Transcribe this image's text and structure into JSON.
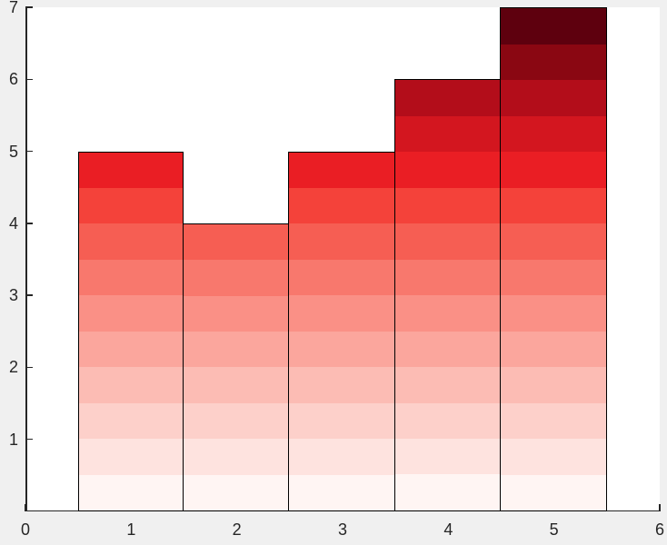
{
  "chart_data": {
    "type": "bar",
    "title": "",
    "xlabel": "",
    "ylabel": "",
    "x": [
      1,
      2,
      3,
      4,
      5
    ],
    "values": [
      5,
      4,
      5,
      6,
      7
    ],
    "bar_width": 1,
    "xlim": [
      0,
      6
    ],
    "ylim": [
      0,
      7
    ],
    "x_ticks": [
      0,
      1,
      2,
      3,
      4,
      5,
      6
    ],
    "y_ticks": [
      1,
      2,
      3,
      4,
      5,
      6,
      7
    ],
    "grid": "off",
    "legend": "none",
    "band_height": 0.5,
    "band_colors": [
      "#fff5f3",
      "#fee3df",
      "#fdd0ca",
      "#fcbcb4",
      "#fba69d",
      "#fa9086",
      "#f8786d",
      "#f65e53",
      "#f4423a",
      "#ea1e24",
      "#d3161f",
      "#b30d1a",
      "#8a0712",
      "#5e000e"
    ],
    "edge_color": "#000000",
    "axis_color": "#262626",
    "figure_bg": "#f0f0f0",
    "plot_bg": "#ffffff"
  }
}
